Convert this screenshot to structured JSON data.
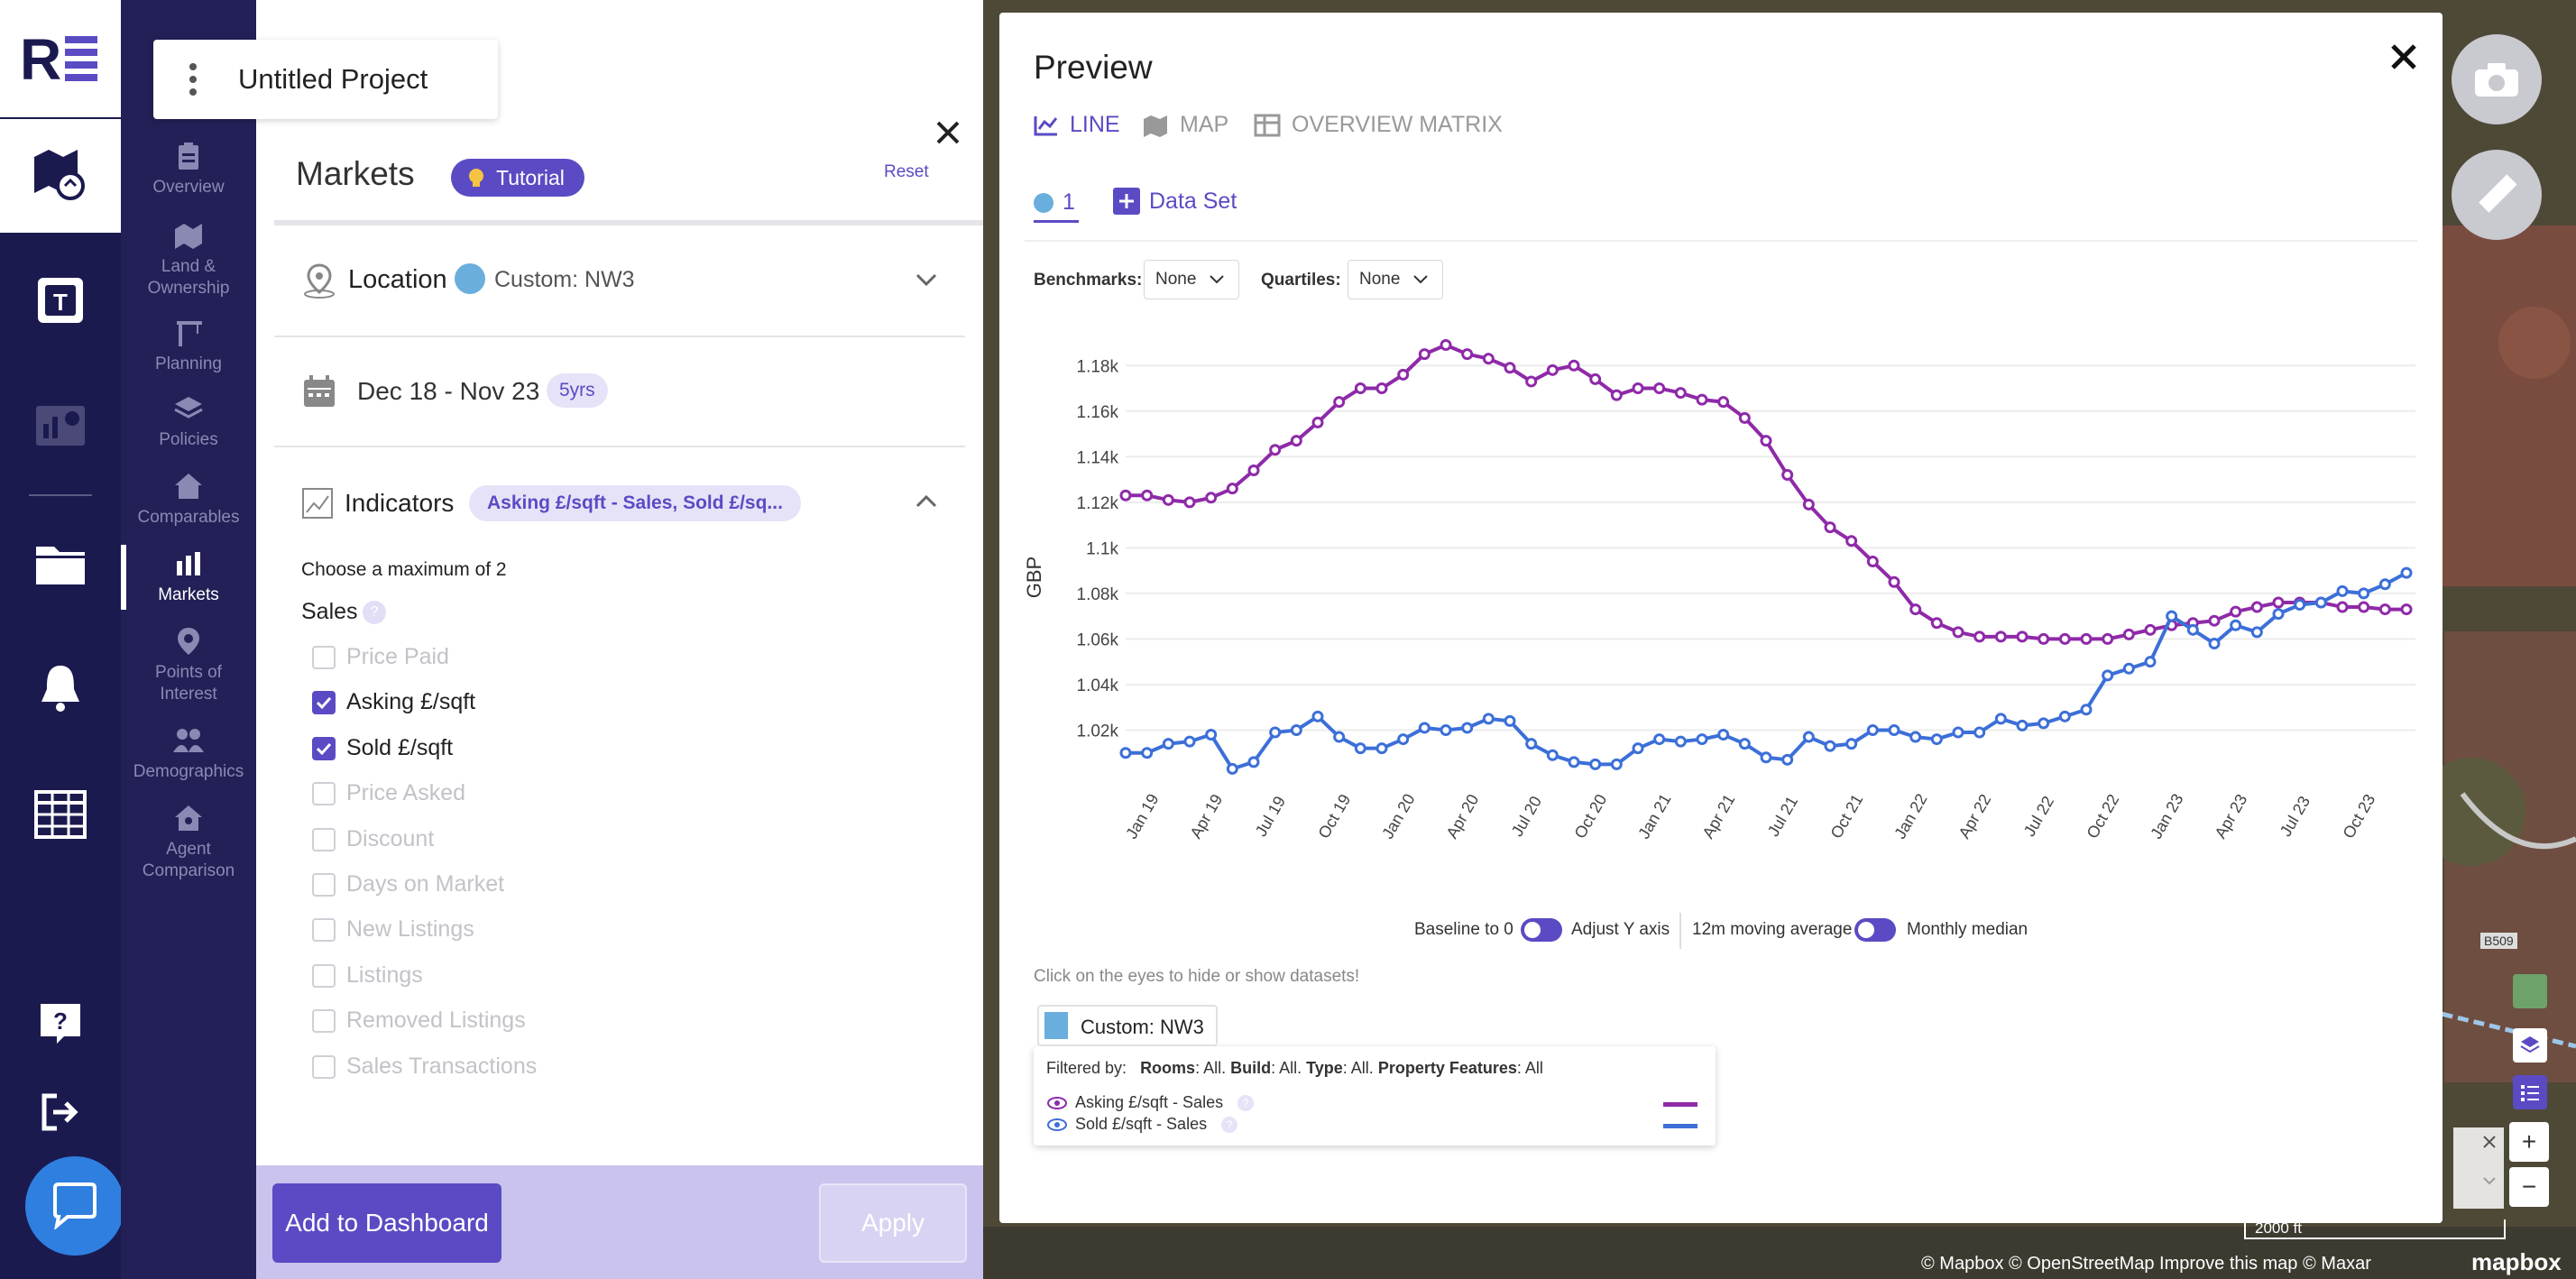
{
  "rail": {
    "logo": "RE"
  },
  "subnav": {
    "items": [
      {
        "label": "Overview"
      },
      {
        "label": "Land &\nOwnership"
      },
      {
        "label": "Planning"
      },
      {
        "label": "Policies"
      },
      {
        "label": "Comparables"
      },
      {
        "label": "Markets"
      },
      {
        "label": "Points of\nInterest"
      },
      {
        "label": "Demographics"
      },
      {
        "label": "Agent\nComparison"
      }
    ]
  },
  "project": {
    "title": "Untitled Project"
  },
  "panel": {
    "title": "Markets",
    "tutorial_label": "Tutorial",
    "reset_label": "Reset",
    "location": {
      "label": "Location",
      "value": "Custom: NW3"
    },
    "dates": {
      "range": "Dec 18 - Nov 23",
      "badge": "5yrs"
    },
    "indicators": {
      "label": "Indicators",
      "badge": "Asking £/sqft - Sales, Sold £/sq..."
    },
    "hint": "Choose a maximum of 2",
    "group": "Sales",
    "options": [
      {
        "label": "Price Paid",
        "checked": false
      },
      {
        "label": "Asking £/sqft",
        "checked": true
      },
      {
        "label": "Sold £/sqft",
        "checked": true
      },
      {
        "label": "Price Asked",
        "checked": false
      },
      {
        "label": "Discount",
        "checked": false
      },
      {
        "label": "Days on Market",
        "checked": false
      },
      {
        "label": "New Listings",
        "checked": false
      },
      {
        "label": "Listings",
        "checked": false
      },
      {
        "label": "Removed Listings",
        "checked": false
      },
      {
        "label": "Sales Transactions",
        "checked": false
      }
    ],
    "add_dashboard_label": "Add to Dashboard",
    "apply_label": "Apply"
  },
  "preview": {
    "title": "Preview",
    "tabs": [
      "LINE",
      "MAP",
      "OVERVIEW MATRIX"
    ],
    "dataset_tab": "1",
    "add_dataset_label": "Data Set",
    "benchmarks_label": "Benchmarks:",
    "benchmarks_value": "None",
    "quartiles_label": "Quartiles:",
    "quartiles_value": "None",
    "baseline_label": "Baseline to 0",
    "adjust_label": "Adjust Y axis",
    "moving_avg_label": "12m moving average",
    "median_label": "Monthly median",
    "eyes_hint": "Click on the eyes to hide or show datasets!",
    "legend_title": "Custom: NW3",
    "filter_text": {
      "prefix": "Filtered by:",
      "rooms_k": "Rooms",
      "rooms_v": ": All. ",
      "build_k": "Build",
      "build_v": ": All. ",
      "type_k": "Type",
      "type_v": ": All. ",
      "feat_k": "Property Features",
      "feat_v": ": All"
    },
    "legend_series": [
      "Asking £/sqft - Sales",
      "Sold £/sqft - Sales"
    ]
  },
  "map": {
    "scale": "2000 ft",
    "attribution": "© Mapbox © OpenStreetMap  Improve this map  © Maxar",
    "brand": "mapbox",
    "road": "B509"
  },
  "colors": {
    "accent": "#5a4bc4",
    "navy": "#1b1a4f",
    "asking": "#8e2aa8",
    "sold": "#3c6fd8"
  },
  "chart_data": {
    "type": "line",
    "ylabel": "GBP",
    "ylim": [
      1000,
      1190
    ],
    "yticks": [
      1020,
      1040,
      1060,
      1080,
      1100,
      1120,
      1140,
      1160,
      1180
    ],
    "ytick_labels": [
      "1.02k",
      "1.04k",
      "1.06k",
      "1.08k",
      "1.1k",
      "1.12k",
      "1.14k",
      "1.16k",
      "1.18k"
    ],
    "xtick_labels": [
      "Jan 19",
      "Apr 19",
      "Jul 19",
      "Oct 19",
      "Jan 20",
      "Apr 20",
      "Jul 20",
      "Oct 20",
      "Jan 21",
      "Apr 21",
      "Jul 21",
      "Oct 21",
      "Jan 22",
      "Apr 22",
      "Jul 22",
      "Oct 22",
      "Jan 23",
      "Apr 23",
      "Jul 23",
      "Oct 23"
    ],
    "series": [
      {
        "name": "Asking £/sqft - Sales",
        "values": [
          1123,
          1123,
          1121,
          1120,
          1122,
          1126,
          1134,
          1143,
          1147,
          1155,
          1164,
          1170,
          1170,
          1176,
          1185,
          1189,
          1185,
          1183,
          1179,
          1173,
          1178,
          1180,
          1174,
          1167,
          1170,
          1170,
          1168,
          1165,
          1164,
          1157,
          1147,
          1132,
          1119,
          1109,
          1103,
          1094,
          1085,
          1073,
          1067,
          1063,
          1061,
          1061,
          1061,
          1060,
          1060,
          1060,
          1060,
          1062,
          1064,
          1066,
          1067,
          1068,
          1072,
          1074,
          1076,
          1076,
          1076,
          1074,
          1074,
          1073,
          1073
        ]
      },
      {
        "name": "Sold £/sqft - Sales",
        "values": [
          1010,
          1010,
          1014,
          1015,
          1018,
          1003,
          1006,
          1019,
          1020,
          1026,
          1017,
          1012,
          1012,
          1016,
          1021,
          1020,
          1021,
          1025,
          1024,
          1014,
          1009,
          1006,
          1005,
          1005,
          1012,
          1016,
          1015,
          1016,
          1018,
          1014,
          1008,
          1007,
          1017,
          1013,
          1014,
          1020,
          1020,
          1017,
          1016,
          1019,
          1019,
          1025,
          1022,
          1023,
          1026,
          1029,
          1044,
          1047,
          1050,
          1070,
          1064,
          1058,
          1066,
          1063,
          1071,
          1075,
          1076,
          1081,
          1080,
          1084,
          1089
        ]
      }
    ]
  }
}
